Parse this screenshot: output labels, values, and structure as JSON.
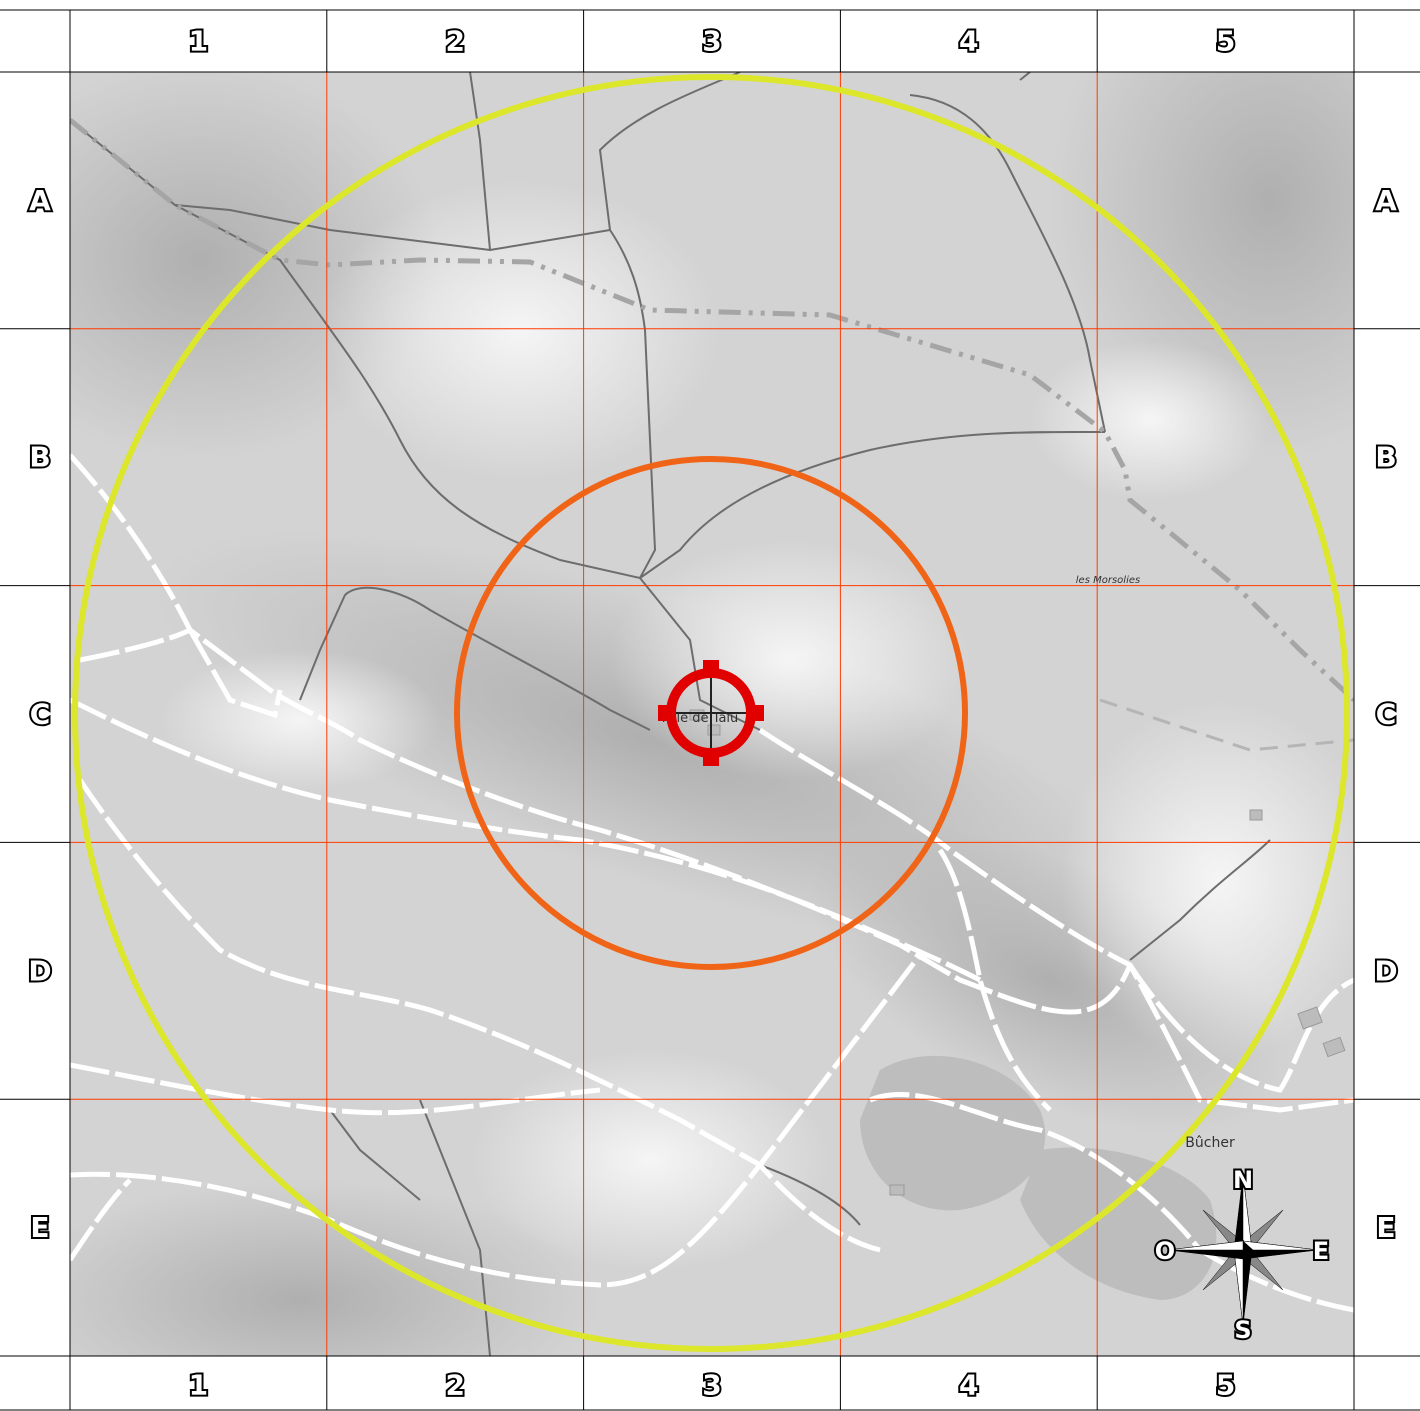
{
  "grid": {
    "columns": [
      "1",
      "2",
      "3",
      "4",
      "5"
    ],
    "rows": [
      "A",
      "B",
      "C",
      "D",
      "E"
    ],
    "line_color": "#ff3b00"
  },
  "places": {
    "target": "Mlle de Talu",
    "les_morsolies": "les Morsolies",
    "bucher": "Bûcher"
  },
  "rings": {
    "outer_color": "#dce62a",
    "inner_color": "#f06418"
  },
  "target_marker": {
    "color": "#e00000"
  },
  "compass": {
    "north": "N",
    "east": "E",
    "south": "S",
    "west": "O"
  }
}
